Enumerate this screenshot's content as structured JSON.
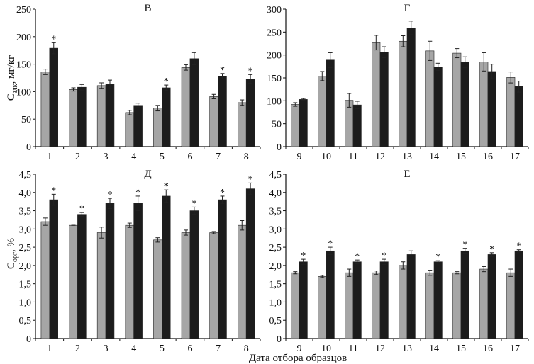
{
  "colors": {
    "gray": "#a6a6a6",
    "black": "#1c1c1c",
    "axis": "#111111"
  },
  "xlabel": "Дата отбора образцов",
  "ylabel_top": {
    "main": "C",
    "sub": "злк",
    "unit": ", мг/кг"
  },
  "ylabel_bottom": {
    "main": "C",
    "sub": "орг",
    "unit": ", %"
  },
  "chart_data": [
    {
      "type": "bar",
      "title": "В",
      "categories": [
        "1",
        "2",
        "3",
        "4",
        "5",
        "6",
        "7",
        "8"
      ],
      "ylim": [
        0,
        250
      ],
      "yticks": [
        "0",
        "50",
        "100",
        "150",
        "200",
        "250"
      ],
      "ytick_values": [
        0,
        50,
        100,
        150,
        200,
        250
      ],
      "series": [
        {
          "name": "gray",
          "values": [
            136,
            104,
            111,
            62,
            70,
            144,
            91,
            80
          ],
          "errors": [
            5,
            3,
            5,
            4,
            5,
            5,
            4,
            5
          ]
        },
        {
          "name": "black",
          "values": [
            179,
            108,
            113,
            75,
            107,
            160,
            128,
            123
          ],
          "errors": [
            10,
            5,
            8,
            4,
            5,
            11,
            5,
            8
          ]
        }
      ],
      "significant_black": [
        true,
        false,
        false,
        false,
        true,
        false,
        true,
        true
      ]
    },
    {
      "type": "bar",
      "title": "Г",
      "categories": [
        "9",
        "10",
        "11",
        "12",
        "13",
        "14",
        "15",
        "16",
        "17"
      ],
      "ylim": [
        0,
        300
      ],
      "yticks": [
        "0",
        "50",
        "100",
        "150",
        "200",
        "250",
        "300"
      ],
      "ytick_values": [
        0,
        50,
        100,
        150,
        200,
        250,
        300
      ],
      "series": [
        {
          "name": "gray",
          "values": [
            92,
            154,
            101,
            227,
            230,
            209,
            204,
            185,
            151
          ],
          "errors": [
            4,
            10,
            15,
            16,
            12,
            21,
            10,
            20,
            12
          ]
        },
        {
          "name": "black",
          "values": [
            103,
            189,
            91,
            206,
            259,
            174,
            184,
            164,
            131
          ],
          "errors": [
            2,
            16,
            8,
            12,
            15,
            8,
            12,
            16,
            12
          ]
        }
      ],
      "significant_black": [
        false,
        false,
        false,
        false,
        false,
        false,
        false,
        false,
        false
      ]
    },
    {
      "type": "bar",
      "title": "Д",
      "categories": [
        "1",
        "2",
        "3",
        "4",
        "5",
        "6",
        "7",
        "8"
      ],
      "ylim": [
        0,
        4.5
      ],
      "yticks": [
        "0",
        "0,5",
        "1,0",
        "1,5",
        "2,0",
        "2,5",
        "3,0",
        "3,5",
        "4,0",
        "4,5"
      ],
      "ytick_values": [
        0,
        0.5,
        1,
        1.5,
        2,
        2.5,
        3,
        3.5,
        4,
        4.5
      ],
      "series": [
        {
          "name": "gray",
          "values": [
            3.2,
            3.1,
            2.9,
            3.1,
            2.7,
            2.9,
            2.9,
            3.1
          ],
          "errors": [
            0.1,
            0.0,
            0.15,
            0.06,
            0.06,
            0.07,
            0.03,
            0.13
          ]
        },
        {
          "name": "black",
          "values": [
            3.8,
            3.4,
            3.7,
            3.7,
            3.9,
            3.5,
            3.8,
            4.1
          ],
          "errors": [
            0.15,
            0.05,
            0.14,
            0.2,
            0.17,
            0.1,
            0.1,
            0.16
          ]
        }
      ],
      "significant_black": [
        true,
        true,
        true,
        true,
        true,
        true,
        true,
        true
      ]
    },
    {
      "type": "bar",
      "title": "Е",
      "categories": [
        "9",
        "10",
        "11",
        "12",
        "13",
        "14",
        "15",
        "16",
        "17"
      ],
      "ylim": [
        0,
        4.5
      ],
      "yticks": [
        "0",
        "0,5",
        "1,0",
        "1,5",
        "2,0",
        "2,5",
        "3,0",
        "3,5",
        "4,0",
        "4,5"
      ],
      "ytick_values": [
        0,
        0.5,
        1,
        1.5,
        2,
        2.5,
        3,
        3.5,
        4,
        4.5
      ],
      "series": [
        {
          "name": "gray",
          "values": [
            1.8,
            1.7,
            1.8,
            1.8,
            2.0,
            1.8,
            1.8,
            1.9,
            1.8
          ],
          "errors": [
            0.03,
            0.03,
            0.1,
            0.05,
            0.1,
            0.07,
            0.03,
            0.07,
            0.1
          ]
        },
        {
          "name": "black",
          "values": [
            2.1,
            2.4,
            2.1,
            2.1,
            2.3,
            2.1,
            2.4,
            2.3,
            2.4
          ],
          "errors": [
            0.07,
            0.1,
            0.05,
            0.07,
            0.1,
            0.03,
            0.07,
            0.05,
            0.03
          ]
        }
      ],
      "significant_black": [
        true,
        true,
        true,
        true,
        false,
        true,
        true,
        true,
        true
      ]
    }
  ]
}
